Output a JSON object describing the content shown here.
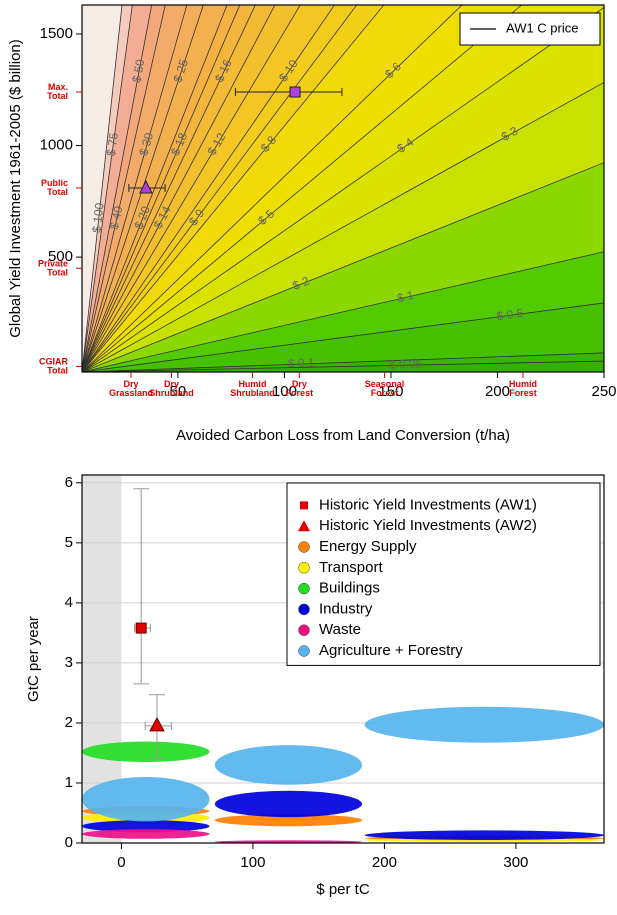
{
  "chart_data": [
    {
      "type": "contour",
      "xlabel": "Avoided Carbon Loss from Land Conversion (t/ha)",
      "ylabel": "Global Yield Investment 1961-2005 ($ billion)",
      "xlim": [
        5,
        250
      ],
      "ylim": [
        -15,
        1630
      ],
      "xticks": [
        50,
        100,
        150,
        200,
        250
      ],
      "yticks": [
        500,
        1000,
        1500
      ],
      "x_annotations": [
        {
          "value": 28,
          "label": [
            "Dry",
            "Grassland"
          ]
        },
        {
          "value": 47,
          "label": [
            "Dry",
            "Shrubland"
          ]
        },
        {
          "value": 85,
          "label": [
            "Humid",
            "Shrubland"
          ]
        },
        {
          "value": 107,
          "label": [
            "Dry",
            "Forest"
          ]
        },
        {
          "value": 147,
          "label": [
            "Seasonal",
            "Forest"
          ]
        },
        {
          "value": 212,
          "label": [
            "Humid",
            "Forest"
          ]
        }
      ],
      "y_annotations": [
        {
          "value": 1240,
          "label": [
            "Max.",
            "Total"
          ]
        },
        {
          "value": 810,
          "label": [
            "Public",
            "Total"
          ]
        },
        {
          "value": 450,
          "label": [
            "Private",
            "Total"
          ]
        },
        {
          "value": 10,
          "label": [
            "CGIAR",
            "Total"
          ]
        }
      ],
      "contours": [
        {
          "value": 100,
          "label": "$ 100"
        },
        {
          "value": 75,
          "label": "$ 75"
        },
        {
          "value": 50,
          "label": "$ 50"
        },
        {
          "value": 40,
          "label": "$ 40"
        },
        {
          "value": 30,
          "label": "$ 30"
        },
        {
          "value": 25,
          "label": "$ 25"
        },
        {
          "value": 20,
          "label": "$ 20"
        },
        {
          "value": 18,
          "label": "$ 18"
        },
        {
          "value": 16,
          "label": "$ 16"
        },
        {
          "value": 14,
          "label": "$ 14"
        },
        {
          "value": 12,
          "label": "$ 12"
        },
        {
          "value": 10,
          "label": "$ 10"
        },
        {
          "value": 9,
          "label": "$ 9"
        },
        {
          "value": 8,
          "label": "$ 8"
        },
        {
          "value": 6,
          "label": "$ 6"
        },
        {
          "value": 5,
          "label": "$ 5"
        },
        {
          "value": 4,
          "label": "$ 4"
        },
        {
          "value": 3,
          "label": "$ 3"
        },
        {
          "value": 2,
          "label": "$ 2"
        },
        {
          "value": 1,
          "label": "$ 1"
        },
        {
          "value": 0.5,
          "label": "$ 0.5"
        },
        {
          "value": 0.1,
          "label": "$ 0.1"
        },
        {
          "value": 0.05,
          "label": "$ 0.05"
        }
      ],
      "points": {
        "x": [
          105,
          35
        ],
        "values": [
          1240,
          810
        ],
        "x_low": [
          77,
          27
        ],
        "x_high": [
          127,
          44
        ],
        "markers": [
          "square",
          "triangle"
        ],
        "color": "#b040e0"
      },
      "legend": "AW1 C price",
      "legend_position": "top-right"
    },
    {
      "type": "ellipse",
      "xlabel": "$ per tC",
      "ylabel": "GtC per year",
      "xlim": [
        -30,
        367
      ],
      "ylim": [
        0,
        6.13
      ],
      "xticks": [
        0,
        100,
        200,
        300
      ],
      "yticks": [
        0,
        1,
        2,
        3,
        4,
        5,
        6
      ],
      "grid": true,
      "shade_to": 0,
      "points": [
        {
          "name": "Historic Yield Investments (AW1)",
          "color": "#e00000",
          "marker": "square",
          "x": [
            15
          ],
          "values": [
            3.58
          ],
          "y_low": [
            2.65
          ],
          "y_high": [
            5.9
          ],
          "x_low": [
            10
          ],
          "x_high": [
            22
          ]
        },
        {
          "name": "Historic Yield Investments (AW2)",
          "color": "#e00000",
          "marker": "triangle",
          "x": [
            27
          ],
          "values": [
            1.95
          ],
          "y_low": [
            1.4
          ],
          "y_high": [
            2.47
          ],
          "x_low": [
            18
          ],
          "x_high": [
            38
          ]
        }
      ],
      "cost_ranges": [
        [
          -30,
          67
        ],
        [
          71,
          183
        ],
        [
          185,
          367
        ]
      ],
      "series": [
        {
          "name": "Energy Supply",
          "color": "#ff7f00",
          "values": [
            0.53,
            0.38,
            0.08
          ],
          "spread": [
            0.08,
            0.1,
            0.04
          ]
        },
        {
          "name": "Transport",
          "color": "#ffee00",
          "values": [
            0.42,
            null,
            0.05
          ],
          "spread": [
            0.1,
            null,
            0.03
          ]
        },
        {
          "name": "Buildings",
          "color": "#22dd22",
          "values": [
            1.52,
            null,
            null
          ],
          "spread": [
            0.17,
            null,
            null
          ]
        },
        {
          "name": "Industry",
          "color": "#0000dd",
          "values": [
            0.28,
            0.65,
            0.13
          ],
          "spread": [
            0.1,
            0.22,
            0.08
          ]
        },
        {
          "name": "Waste",
          "color": "#ee1188",
          "values": [
            0.15,
            0.02,
            null
          ],
          "spread": [
            0.08,
            0.02,
            null
          ]
        },
        {
          "name": "Agriculture + Forestry",
          "color": "#55b4ee",
          "values": [
            0.73,
            1.3,
            1.97
          ],
          "spread": [
            0.37,
            0.33,
            0.3
          ]
        }
      ],
      "legend_position": "top-right"
    }
  ]
}
